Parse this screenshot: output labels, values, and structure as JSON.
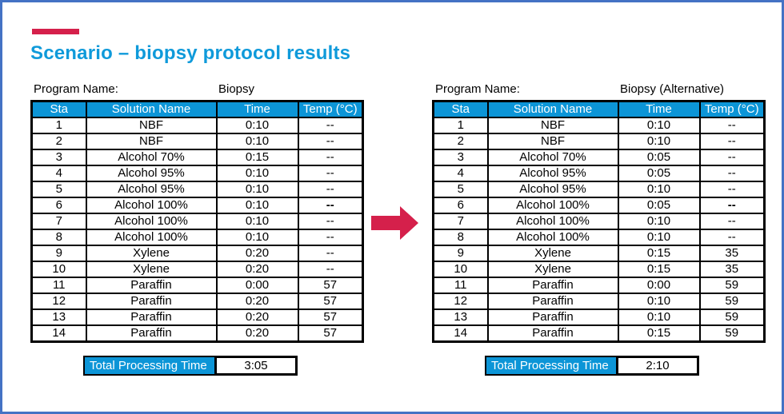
{
  "slide": {
    "title": "Scenario – biopsy protocol results",
    "colors": {
      "accent_red": "#D5204B",
      "header_blue": "#0C95D7",
      "title_blue": "#0F9ADA",
      "border_blue": "#4472C4"
    },
    "icons": {
      "transition": "right-arrow"
    }
  },
  "tables": {
    "left": {
      "program_label": "Program Name:",
      "program_name": "Biopsy",
      "columns": [
        "Sta",
        "Solution Name",
        "Time",
        "Temp (°C)"
      ],
      "rows": [
        [
          "1",
          "NBF",
          "0:10",
          "--"
        ],
        [
          "2",
          "NBF",
          "0:10",
          "--"
        ],
        [
          "3",
          "Alcohol 70%",
          "0:15",
          "--"
        ],
        [
          "4",
          "Alcohol 95%",
          "0:10",
          "--"
        ],
        [
          "5",
          "Alcohol 95%",
          "0:10",
          "--"
        ],
        [
          "6",
          "Alcohol 100%",
          "0:10",
          "--"
        ],
        [
          "7",
          "Alcohol 100%",
          "0:10",
          "--"
        ],
        [
          "8",
          "Alcohol 100%",
          "0:10",
          "--"
        ],
        [
          "9",
          "Xylene",
          "0:20",
          "--"
        ],
        [
          "10",
          "Xylene",
          "0:20",
          "--"
        ],
        [
          "11",
          "Paraffin",
          "0:00",
          "57"
        ],
        [
          "12",
          "Paraffin",
          "0:20",
          "57"
        ],
        [
          "13",
          "Paraffin",
          "0:20",
          "57"
        ],
        [
          "14",
          "Paraffin",
          "0:20",
          "57"
        ]
      ],
      "bold_temp_stations": [
        "6"
      ],
      "total_label": "Total Processing Time",
      "total_value": "3:05"
    },
    "right": {
      "program_label": "Program Name:",
      "program_name": "Biopsy (Alternative)",
      "columns": [
        "Sta",
        "Solution Name",
        "Time",
        "Temp (°C)"
      ],
      "rows": [
        [
          "1",
          "NBF",
          "0:10",
          "--"
        ],
        [
          "2",
          "NBF",
          "0:10",
          "--"
        ],
        [
          "3",
          "Alcohol 70%",
          "0:05",
          "--"
        ],
        [
          "4",
          "Alcohol 95%",
          "0:05",
          "--"
        ],
        [
          "5",
          "Alcohol 95%",
          "0:10",
          "--"
        ],
        [
          "6",
          "Alcohol 100%",
          "0:05",
          "--"
        ],
        [
          "7",
          "Alcohol 100%",
          "0:10",
          "--"
        ],
        [
          "8",
          "Alcohol 100%",
          "0:10",
          "--"
        ],
        [
          "9",
          "Xylene",
          "0:15",
          "35"
        ],
        [
          "10",
          "Xylene",
          "0:15",
          "35"
        ],
        [
          "11",
          "Paraffin",
          "0:00",
          "59"
        ],
        [
          "12",
          "Paraffin",
          "0:10",
          "59"
        ],
        [
          "13",
          "Paraffin",
          "0:10",
          "59"
        ],
        [
          "14",
          "Paraffin",
          "0:15",
          "59"
        ]
      ],
      "bold_temp_stations": [
        "6"
      ],
      "total_label": "Total Processing Time",
      "total_value": "2:10"
    }
  }
}
